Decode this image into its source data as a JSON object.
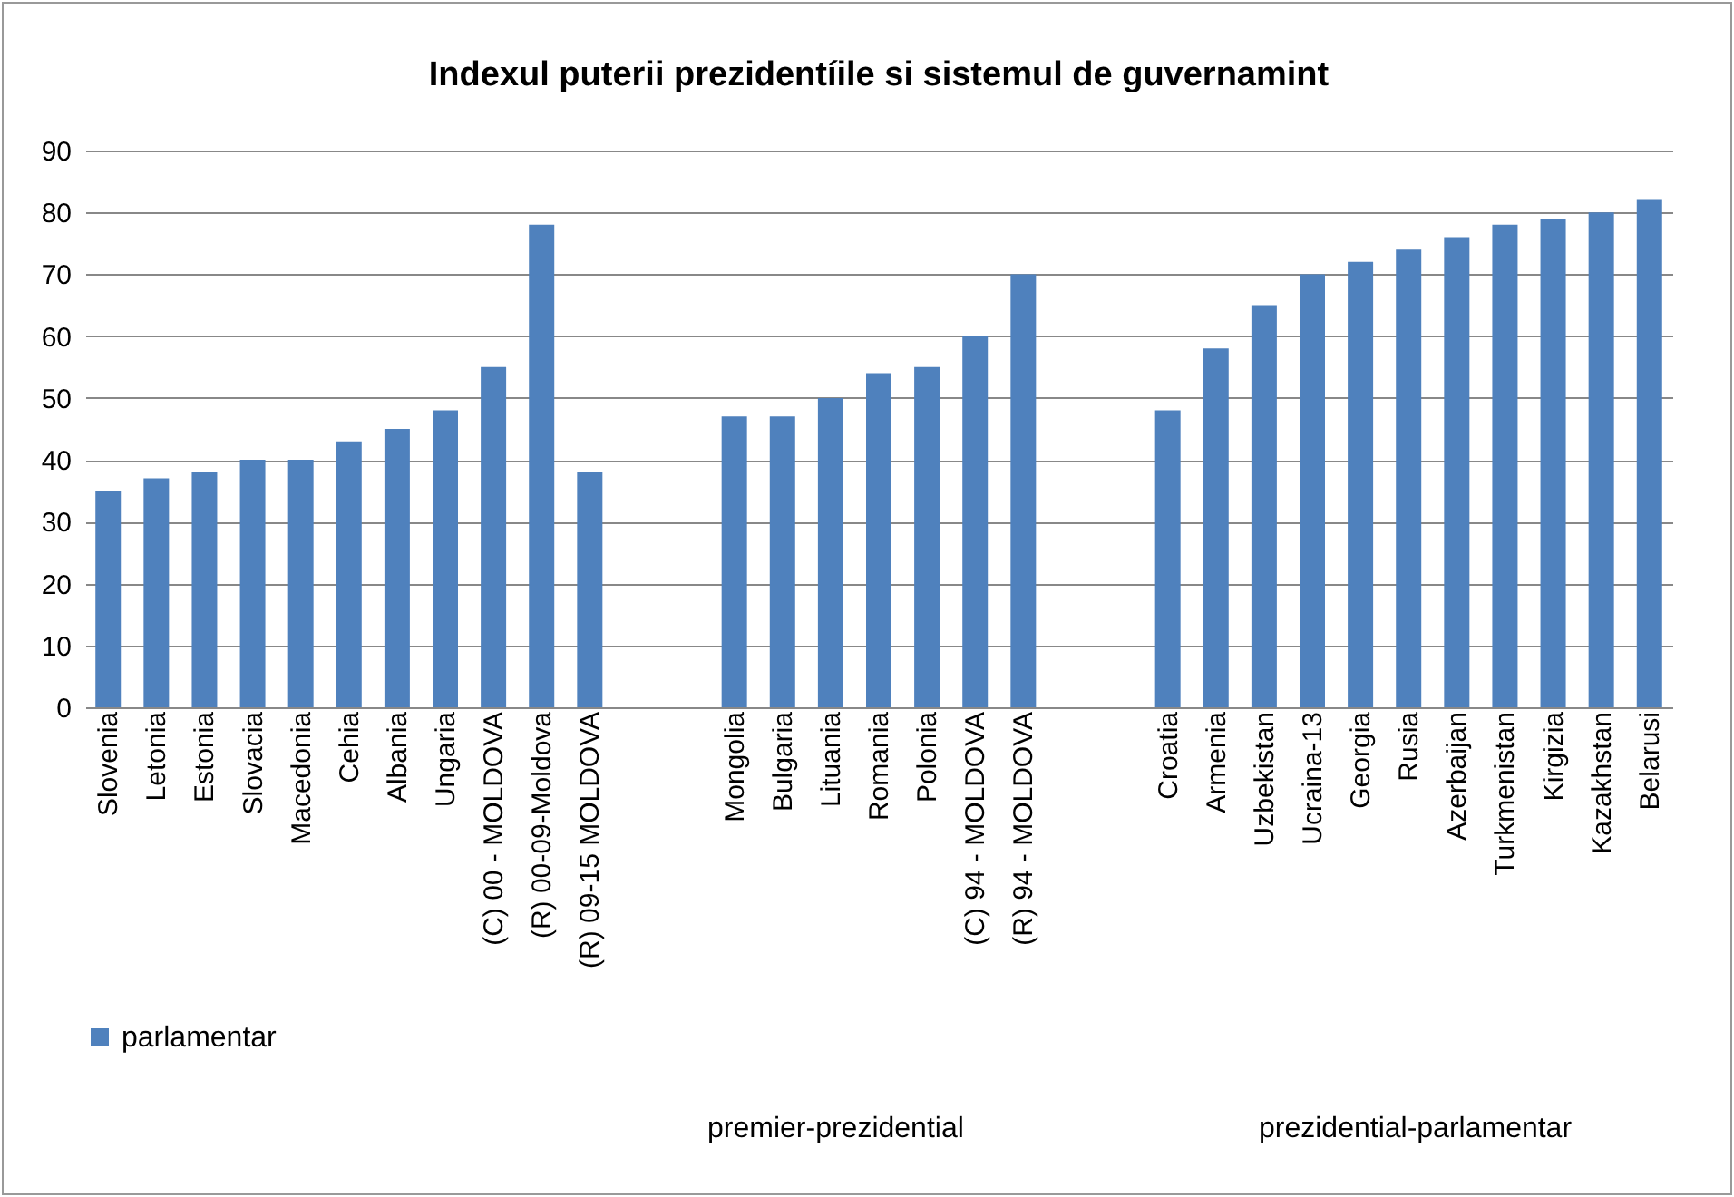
{
  "chart_data": {
    "type": "bar",
    "title": "Indexul puterii prezidentíile si sistemul de guvernamint",
    "categories": [
      "Slovenia",
      "Letonia",
      "Estonia",
      "Slovacia",
      "Macedonia",
      "Cehia",
      "Albania",
      "Ungaria",
      "(C) 00 - MOLDOVA",
      "(R) 00-09-Moldova",
      "(R) 09-15 MOLDOVA",
      null,
      null,
      "Mongolia",
      "Bulgaria",
      "Lituania",
      "Romania",
      "Polonia",
      "(C) 94 - MOLDOVA",
      "(R) 94 - MOLDOVA",
      null,
      null,
      "Croatia",
      "Armenia",
      "Uzbekistan",
      "Ucraina-13",
      "Georgia",
      "Rusia",
      "Azerbaijan",
      "Turkmenistan",
      "Kirgizia",
      "Kazakhstan",
      "Belarusi"
    ],
    "series": [
      {
        "name": "parlamentar",
        "color": "#4f81bd",
        "values": [
          35,
          37,
          38,
          40,
          40,
          43,
          45,
          48,
          55,
          78,
          38,
          null,
          null,
          47,
          47,
          50,
          54,
          55,
          60,
          70,
          null,
          null,
          48,
          58,
          65,
          70,
          72,
          74,
          76,
          78,
          79,
          80,
          82
        ]
      }
    ],
    "annotations": [
      "premier-prezidential",
      "prezidential-parlamentar"
    ],
    "ylim": [
      0,
      90
    ],
    "yticks": [
      0,
      10,
      20,
      30,
      40,
      50,
      60,
      70,
      80,
      90
    ],
    "grid": "y",
    "legend": "bottom left"
  }
}
